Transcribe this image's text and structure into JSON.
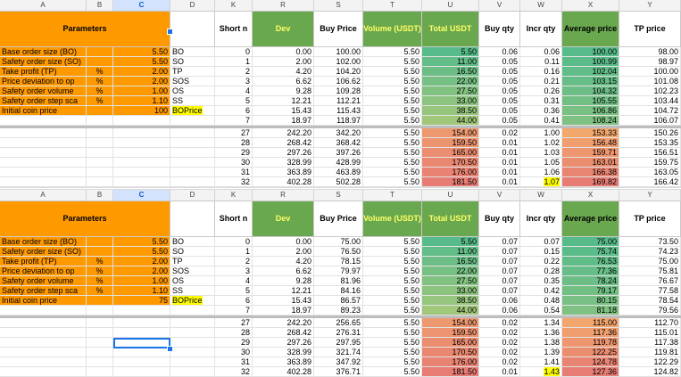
{
  "columns": [
    {
      "letter": "A",
      "selected": false
    },
    {
      "letter": "B",
      "selected": false
    },
    {
      "letter": "C",
      "selected": true
    },
    {
      "letter": "D",
      "selected": false
    },
    {
      "letter": "K",
      "selected": false
    },
    {
      "letter": "R",
      "selected": false
    },
    {
      "letter": "S",
      "selected": false
    },
    {
      "letter": "T",
      "selected": false
    },
    {
      "letter": "U",
      "selected": false
    },
    {
      "letter": "V",
      "selected": false
    },
    {
      "letter": "W",
      "selected": false
    },
    {
      "letter": "X",
      "selected": false
    },
    {
      "letter": "Y",
      "selected": false
    }
  ],
  "headers": {
    "parameters": "Parameters",
    "short_n": "Short n",
    "dev": "Dev",
    "buy_price": "Buy Price",
    "volume": "Volume (USDT)",
    "total": "Total USDT",
    "buy_qty": "Buy qty",
    "incr_qty": "Incr qty",
    "avg_price": "Average price",
    "tp_price": "TP price"
  },
  "panels": [
    {
      "params": [
        {
          "label": "Base order size (BO)",
          "unit": "",
          "value": "5.50",
          "code": "BO",
          "code_highlight": false
        },
        {
          "label": "Safety order size (SO)",
          "unit": "",
          "value": "5.50",
          "code": "SO",
          "code_highlight": false
        },
        {
          "label": "Take profit (TP)",
          "unit": "%",
          "value": "2.00",
          "code": "TP",
          "code_highlight": false
        },
        {
          "label": "Price deviation to op",
          "unit": "%",
          "value": "2.00",
          "code": "SOS",
          "code_highlight": false
        },
        {
          "label": "Safety order volume",
          "unit": "%",
          "value": "1.00",
          "code": "OS",
          "code_highlight": false
        },
        {
          "label": "Safety order step sca",
          "unit": "%",
          "value": "1.10",
          "code": "SS",
          "code_highlight": false
        },
        {
          "label": "Initial coin price",
          "unit": "",
          "value": "100",
          "code": "BOPrice",
          "code_highlight": true
        }
      ],
      "rows_top": [
        {
          "n": "0",
          "dev": "0.00",
          "buy": "100.00",
          "vol": "5.50",
          "total": "5.50",
          "qty": "0.06",
          "incr": "0.06",
          "avg": "100.00",
          "tp": "98.00"
        },
        {
          "n": "1",
          "dev": "2.00",
          "buy": "102.00",
          "vol": "5.50",
          "total": "11.00",
          "qty": "0.05",
          "incr": "0.11",
          "avg": "100.99",
          "tp": "98.97"
        },
        {
          "n": "2",
          "dev": "4.20",
          "buy": "104.20",
          "vol": "5.50",
          "total": "16.50",
          "qty": "0.05",
          "incr": "0.16",
          "avg": "102.04",
          "tp": "100.00"
        },
        {
          "n": "3",
          "dev": "6.62",
          "buy": "106.62",
          "vol": "5.50",
          "total": "22.00",
          "qty": "0.05",
          "incr": "0.21",
          "avg": "103.15",
          "tp": "101.08"
        },
        {
          "n": "4",
          "dev": "9.28",
          "buy": "109.28",
          "vol": "5.50",
          "total": "27.50",
          "qty": "0.05",
          "incr": "0.26",
          "avg": "104.32",
          "tp": "102.23"
        },
        {
          "n": "5",
          "dev": "12.21",
          "buy": "112.21",
          "vol": "5.50",
          "total": "33.00",
          "qty": "0.05",
          "incr": "0.31",
          "avg": "105.55",
          "tp": "103.44"
        },
        {
          "n": "6",
          "dev": "15.43",
          "buy": "115.43",
          "vol": "5.50",
          "total": "38.50",
          "qty": "0.05",
          "incr": "0.36",
          "avg": "106.86",
          "tp": "104.72"
        },
        {
          "n": "7",
          "dev": "18.97",
          "buy": "118.97",
          "vol": "5.50",
          "total": "44.00",
          "qty": "0.05",
          "incr": "0.41",
          "avg": "108.24",
          "tp": "106.07"
        }
      ],
      "rows_bottom": [
        {
          "n": "27",
          "dev": "242.20",
          "buy": "342.20",
          "vol": "5.50",
          "total": "154.00",
          "qty": "0.02",
          "incr": "1.00",
          "avg": "153.33",
          "tp": "150.26"
        },
        {
          "n": "28",
          "dev": "268.42",
          "buy": "368.42",
          "vol": "5.50",
          "total": "159.50",
          "qty": "0.01",
          "incr": "1.02",
          "avg": "156.48",
          "tp": "153.35"
        },
        {
          "n": "29",
          "dev": "297.26",
          "buy": "397.26",
          "vol": "5.50",
          "total": "165.00",
          "qty": "0.01",
          "incr": "1.03",
          "avg": "159.71",
          "tp": "156.51"
        },
        {
          "n": "30",
          "dev": "328.99",
          "buy": "428.99",
          "vol": "5.50",
          "total": "170.50",
          "qty": "0.01",
          "incr": "1.05",
          "avg": "163.01",
          "tp": "159.75"
        },
        {
          "n": "31",
          "dev": "363.89",
          "buy": "463.89",
          "vol": "5.50",
          "total": "176.00",
          "qty": "0.01",
          "incr": "1.06",
          "avg": "166.38",
          "tp": "163.05"
        },
        {
          "n": "32",
          "dev": "402.28",
          "buy": "502.28",
          "vol": "5.50",
          "total": "181.50",
          "qty": "0.01",
          "incr": "1.07",
          "avg": "169.82",
          "tp": "166.42"
        }
      ]
    },
    {
      "params": [
        {
          "label": "Base order size (BO)",
          "unit": "",
          "value": "5.50",
          "code": "BO",
          "code_highlight": false
        },
        {
          "label": "Safety order size (SO)",
          "unit": "",
          "value": "5.50",
          "code": "SO",
          "code_highlight": false
        },
        {
          "label": "Take profit (TP)",
          "unit": "%",
          "value": "2.00",
          "code": "TP",
          "code_highlight": false
        },
        {
          "label": "Price deviation to op",
          "unit": "%",
          "value": "2.00",
          "code": "SOS",
          "code_highlight": false
        },
        {
          "label": "Safety order volume",
          "unit": "%",
          "value": "1.00",
          "code": "OS",
          "code_highlight": false
        },
        {
          "label": "Safety order step sca",
          "unit": "%",
          "value": "1.10",
          "code": "SS",
          "code_highlight": false
        },
        {
          "label": "Initial coin price",
          "unit": "",
          "value": "75",
          "code": "BOPrice",
          "code_highlight": true
        }
      ],
      "rows_top": [
        {
          "n": "0",
          "dev": "0.00",
          "buy": "75.00",
          "vol": "5.50",
          "total": "5.50",
          "qty": "0.07",
          "incr": "0.07",
          "avg": "75.00",
          "tp": "73.50"
        },
        {
          "n": "1",
          "dev": "2.00",
          "buy": "76.50",
          "vol": "5.50",
          "total": "11.00",
          "qty": "0.07",
          "incr": "0.15",
          "avg": "75.74",
          "tp": "74.23"
        },
        {
          "n": "2",
          "dev": "4.20",
          "buy": "78.15",
          "vol": "5.50",
          "total": "16.50",
          "qty": "0.07",
          "incr": "0.22",
          "avg": "76.53",
          "tp": "75.00"
        },
        {
          "n": "3",
          "dev": "6.62",
          "buy": "79.97",
          "vol": "5.50",
          "total": "22.00",
          "qty": "0.07",
          "incr": "0.28",
          "avg": "77.36",
          "tp": "75.81"
        },
        {
          "n": "4",
          "dev": "9.28",
          "buy": "81.96",
          "vol": "5.50",
          "total": "27.50",
          "qty": "0.07",
          "incr": "0.35",
          "avg": "78.24",
          "tp": "76.67"
        },
        {
          "n": "5",
          "dev": "12.21",
          "buy": "84.16",
          "vol": "5.50",
          "total": "33.00",
          "qty": "0.07",
          "incr": "0.42",
          "avg": "79.17",
          "tp": "77.58"
        },
        {
          "n": "6",
          "dev": "15.43",
          "buy": "86.57",
          "vol": "5.50",
          "total": "38.50",
          "qty": "0.06",
          "incr": "0.48",
          "avg": "80.15",
          "tp": "78.54"
        },
        {
          "n": "7",
          "dev": "18.97",
          "buy": "89.23",
          "vol": "5.50",
          "total": "44.00",
          "qty": "0.06",
          "incr": "0.54",
          "avg": "81.18",
          "tp": "79.56"
        }
      ],
      "rows_bottom": [
        {
          "n": "27",
          "dev": "242.20",
          "buy": "256.65",
          "vol": "5.50",
          "total": "154.00",
          "qty": "0.02",
          "incr": "1.34",
          "avg": "115.00",
          "tp": "112.70"
        },
        {
          "n": "28",
          "dev": "268.42",
          "buy": "276.31",
          "vol": "5.50",
          "total": "159.50",
          "qty": "0.02",
          "incr": "1.36",
          "avg": "117.36",
          "tp": "115.01"
        },
        {
          "n": "29",
          "dev": "297.26",
          "buy": "297.95",
          "vol": "5.50",
          "total": "165.00",
          "qty": "0.02",
          "incr": "1.38",
          "avg": "119.78",
          "tp": "117.38"
        },
        {
          "n": "30",
          "dev": "328.99",
          "buy": "321.74",
          "vol": "5.50",
          "total": "170.50",
          "qty": "0.02",
          "incr": "1.39",
          "avg": "122.25",
          "tp": "119.81"
        },
        {
          "n": "31",
          "dev": "363.89",
          "buy": "347.92",
          "vol": "5.50",
          "total": "176.00",
          "qty": "0.02",
          "incr": "1.41",
          "avg": "124.78",
          "tp": "122.29"
        },
        {
          "n": "32",
          "dev": "402.28",
          "buy": "376.71",
          "vol": "5.50",
          "total": "181.50",
          "qty": "0.01",
          "incr": "1.43",
          "avg": "127.36",
          "tp": "124.82"
        }
      ]
    }
  ],
  "highlighted_incr": "yellow",
  "colors": {
    "header_green": "#6aa84f",
    "param_orange": "#ff9900",
    "total_low": "#57bb8a",
    "total_high": "#e67c73",
    "avg_low": "#57bb8a",
    "avg_high": "#e67c73",
    "selection_blue": "#1a73e8"
  }
}
